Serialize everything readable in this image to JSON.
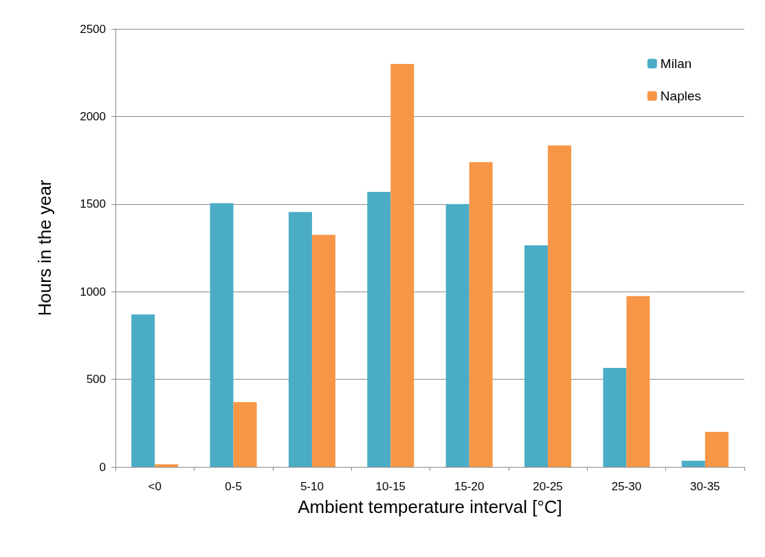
{
  "chart_data": {
    "type": "bar",
    "xlabel": "Ambient temperature interval [°C]",
    "ylabel": "Hours in the year",
    "categories": [
      "<0",
      "0-5",
      "5-10",
      "10-15",
      "15-20",
      "20-25",
      "25-30",
      "30-35"
    ],
    "series": [
      {
        "name": "Milan",
        "color": "#4bacc6",
        "values": [
          870,
          1505,
          1455,
          1570,
          1500,
          1265,
          565,
          35
        ]
      },
      {
        "name": "Naples",
        "color": "#f79646",
        "values": [
          15,
          370,
          1325,
          2300,
          1740,
          1835,
          975,
          200
        ]
      }
    ],
    "ylim": [
      0,
      2500
    ],
    "yticks": [
      0,
      500,
      1000,
      1500,
      2000,
      2500
    ],
    "grid": "y",
    "legend": "top right"
  }
}
